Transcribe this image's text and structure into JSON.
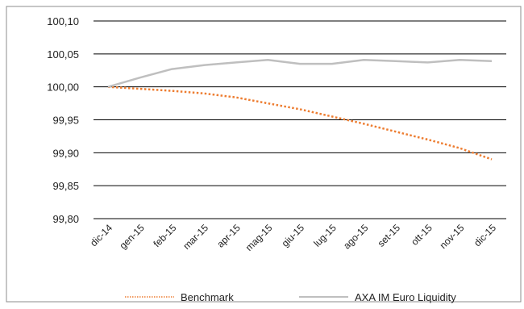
{
  "chart_data": {
    "type": "line",
    "categories": [
      "dic-14",
      "gen-15",
      "feb-15",
      "mar-15",
      "apr-15",
      "mag-15",
      "giu-15",
      "lug-15",
      "ago-15",
      "set-15",
      "ott-15",
      "nov-15",
      "dic-15"
    ],
    "series": [
      {
        "name": "Benchmark",
        "color": "#ED7D31",
        "style": "dotted",
        "values": [
          100.0,
          99.997,
          99.994,
          99.99,
          99.984,
          99.975,
          99.966,
          99.955,
          99.944,
          99.932,
          99.92,
          99.907,
          99.89
        ]
      },
      {
        "name": "AXA IM Euro Liquidity",
        "color": "#BFBFBF",
        "style": "solid",
        "values": [
          100.0,
          100.014,
          100.027,
          100.033,
          100.037,
          100.041,
          100.035,
          100.035,
          100.041,
          100.039,
          100.037,
          100.041,
          100.039
        ]
      }
    ],
    "yticks": [
      "100,10",
      "100,05",
      "100,00",
      "99,95",
      "99,90",
      "99,85",
      "99,80"
    ],
    "ylim": [
      99.8,
      100.1
    ],
    "grid": true,
    "legend_position": "bottom"
  }
}
